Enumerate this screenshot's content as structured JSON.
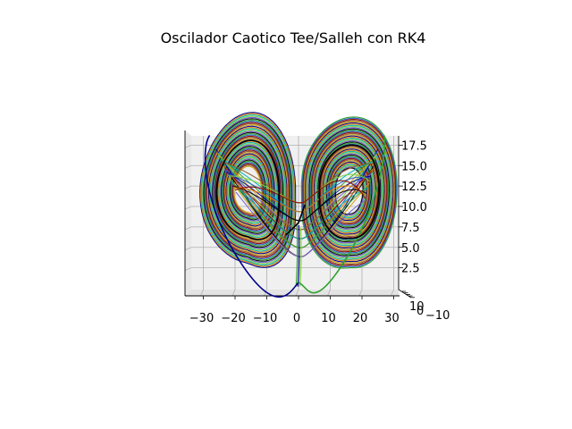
{
  "chart_data": {
    "type": "line",
    "projection": "3d",
    "title": "Oscilador Caotico Tee/Salleh con RK4",
    "x": {
      "label": "",
      "range": [
        -35,
        32
      ],
      "ticks": [
        -30,
        -20,
        -10,
        0,
        10,
        20,
        30
      ],
      "tick_labels": [
        "−30",
        "−20",
        "−10",
        "0",
        "10",
        "20",
        "30"
      ]
    },
    "y": {
      "label": "",
      "range": [
        -10,
        10
      ],
      "ticks": [
        10,
        0,
        -10
      ],
      "tick_labels": [
        "10",
        "0",
        "−10"
      ],
      "note": "depth axis seen edge-on; labels overlap"
    },
    "z": {
      "label": "",
      "range": [
        0,
        18.5
      ],
      "ticks": [
        2.5,
        5.0,
        7.5,
        10.0,
        12.5,
        15.0,
        17.5
      ],
      "tick_labels": [
        "2.5",
        "5.0",
        "7.5",
        "10.0",
        "12.5",
        "15.0",
        "17.5"
      ]
    },
    "grid": true,
    "legend": "none",
    "attractor": {
      "description": "double-scroll (butterfly) chaotic attractor, many overlapping colored trajectories",
      "left_lobe_center": [
        -16,
        12
      ],
      "right_lobe_center": [
        16,
        12
      ],
      "x_extent": [
        -30,
        27
      ],
      "z_extent": [
        0.7,
        18.7
      ],
      "saddle": [
        0,
        7.5
      ]
    },
    "series_colors": [
      "#00008b",
      "#2ca02c",
      "#e07b00",
      "#1f5fc4",
      "#00b3b3",
      "#8b0000",
      "#7fd13b",
      "#8b5a2b",
      "#6b5bd6",
      "#d4a017",
      "#000000"
    ]
  }
}
